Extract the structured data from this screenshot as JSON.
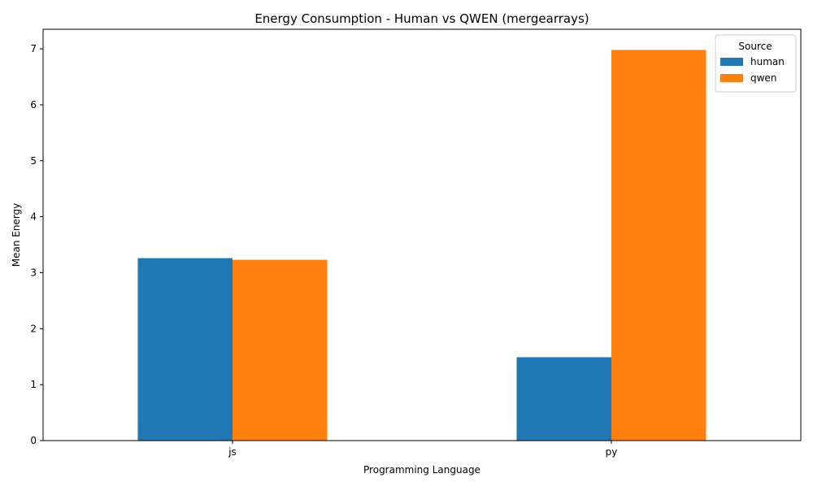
{
  "chart_data": {
    "type": "bar",
    "title": "Energy Consumption - Human vs QWEN (mergearrays)",
    "xlabel": "Programming Language",
    "ylabel": "Mean Energy",
    "categories": [
      "js",
      "py"
    ],
    "series": [
      {
        "name": "human",
        "values": [
          3.26,
          1.49
        ],
        "color": "#1f77b4"
      },
      {
        "name": "qwen",
        "values": [
          3.23,
          6.98
        ],
        "color": "#ff7f0e"
      }
    ],
    "ylim": [
      0,
      7.35
    ],
    "yticks": [
      0,
      1,
      2,
      3,
      4,
      5,
      6,
      7
    ],
    "grid": false,
    "legend": {
      "title": "Source",
      "position": "top-right"
    }
  }
}
